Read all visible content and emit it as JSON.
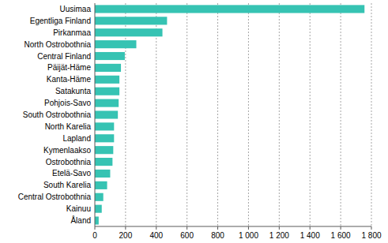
{
  "chart_data": {
    "type": "bar",
    "orientation": "horizontal",
    "categories": [
      "Uusimaa",
      "Egentliga Finland",
      "Pirkanmaa",
      "North Ostrobothnia",
      "Central Finland",
      "Päijät-Häme",
      "Kanta-Häme",
      "Satakunta",
      "Pohjois-Savo",
      "South Ostrobothnia",
      "North Karelia",
      "Lapland",
      "Kymenlaakso",
      "Ostrobothnia",
      "Etelä-Savo",
      "South Karelia",
      "Central Ostrobothnia",
      "Kainuu",
      "Åland"
    ],
    "values": [
      1755,
      470,
      440,
      270,
      195,
      170,
      160,
      160,
      155,
      150,
      125,
      125,
      120,
      115,
      100,
      80,
      55,
      45,
      25
    ],
    "color": "#36c3b3",
    "xlim": [
      0,
      1800
    ],
    "xticks": [
      0,
      200,
      400,
      600,
      800,
      {
        "value": 1000,
        "label": "1 000"
      },
      {
        "value": 1200,
        "label": "1 200"
      },
      {
        "value": 1400,
        "label": "1 400"
      },
      {
        "value": 1600,
        "label": "1 600"
      },
      {
        "value": 1800,
        "label": "1 800"
      }
    ],
    "grid": true
  }
}
